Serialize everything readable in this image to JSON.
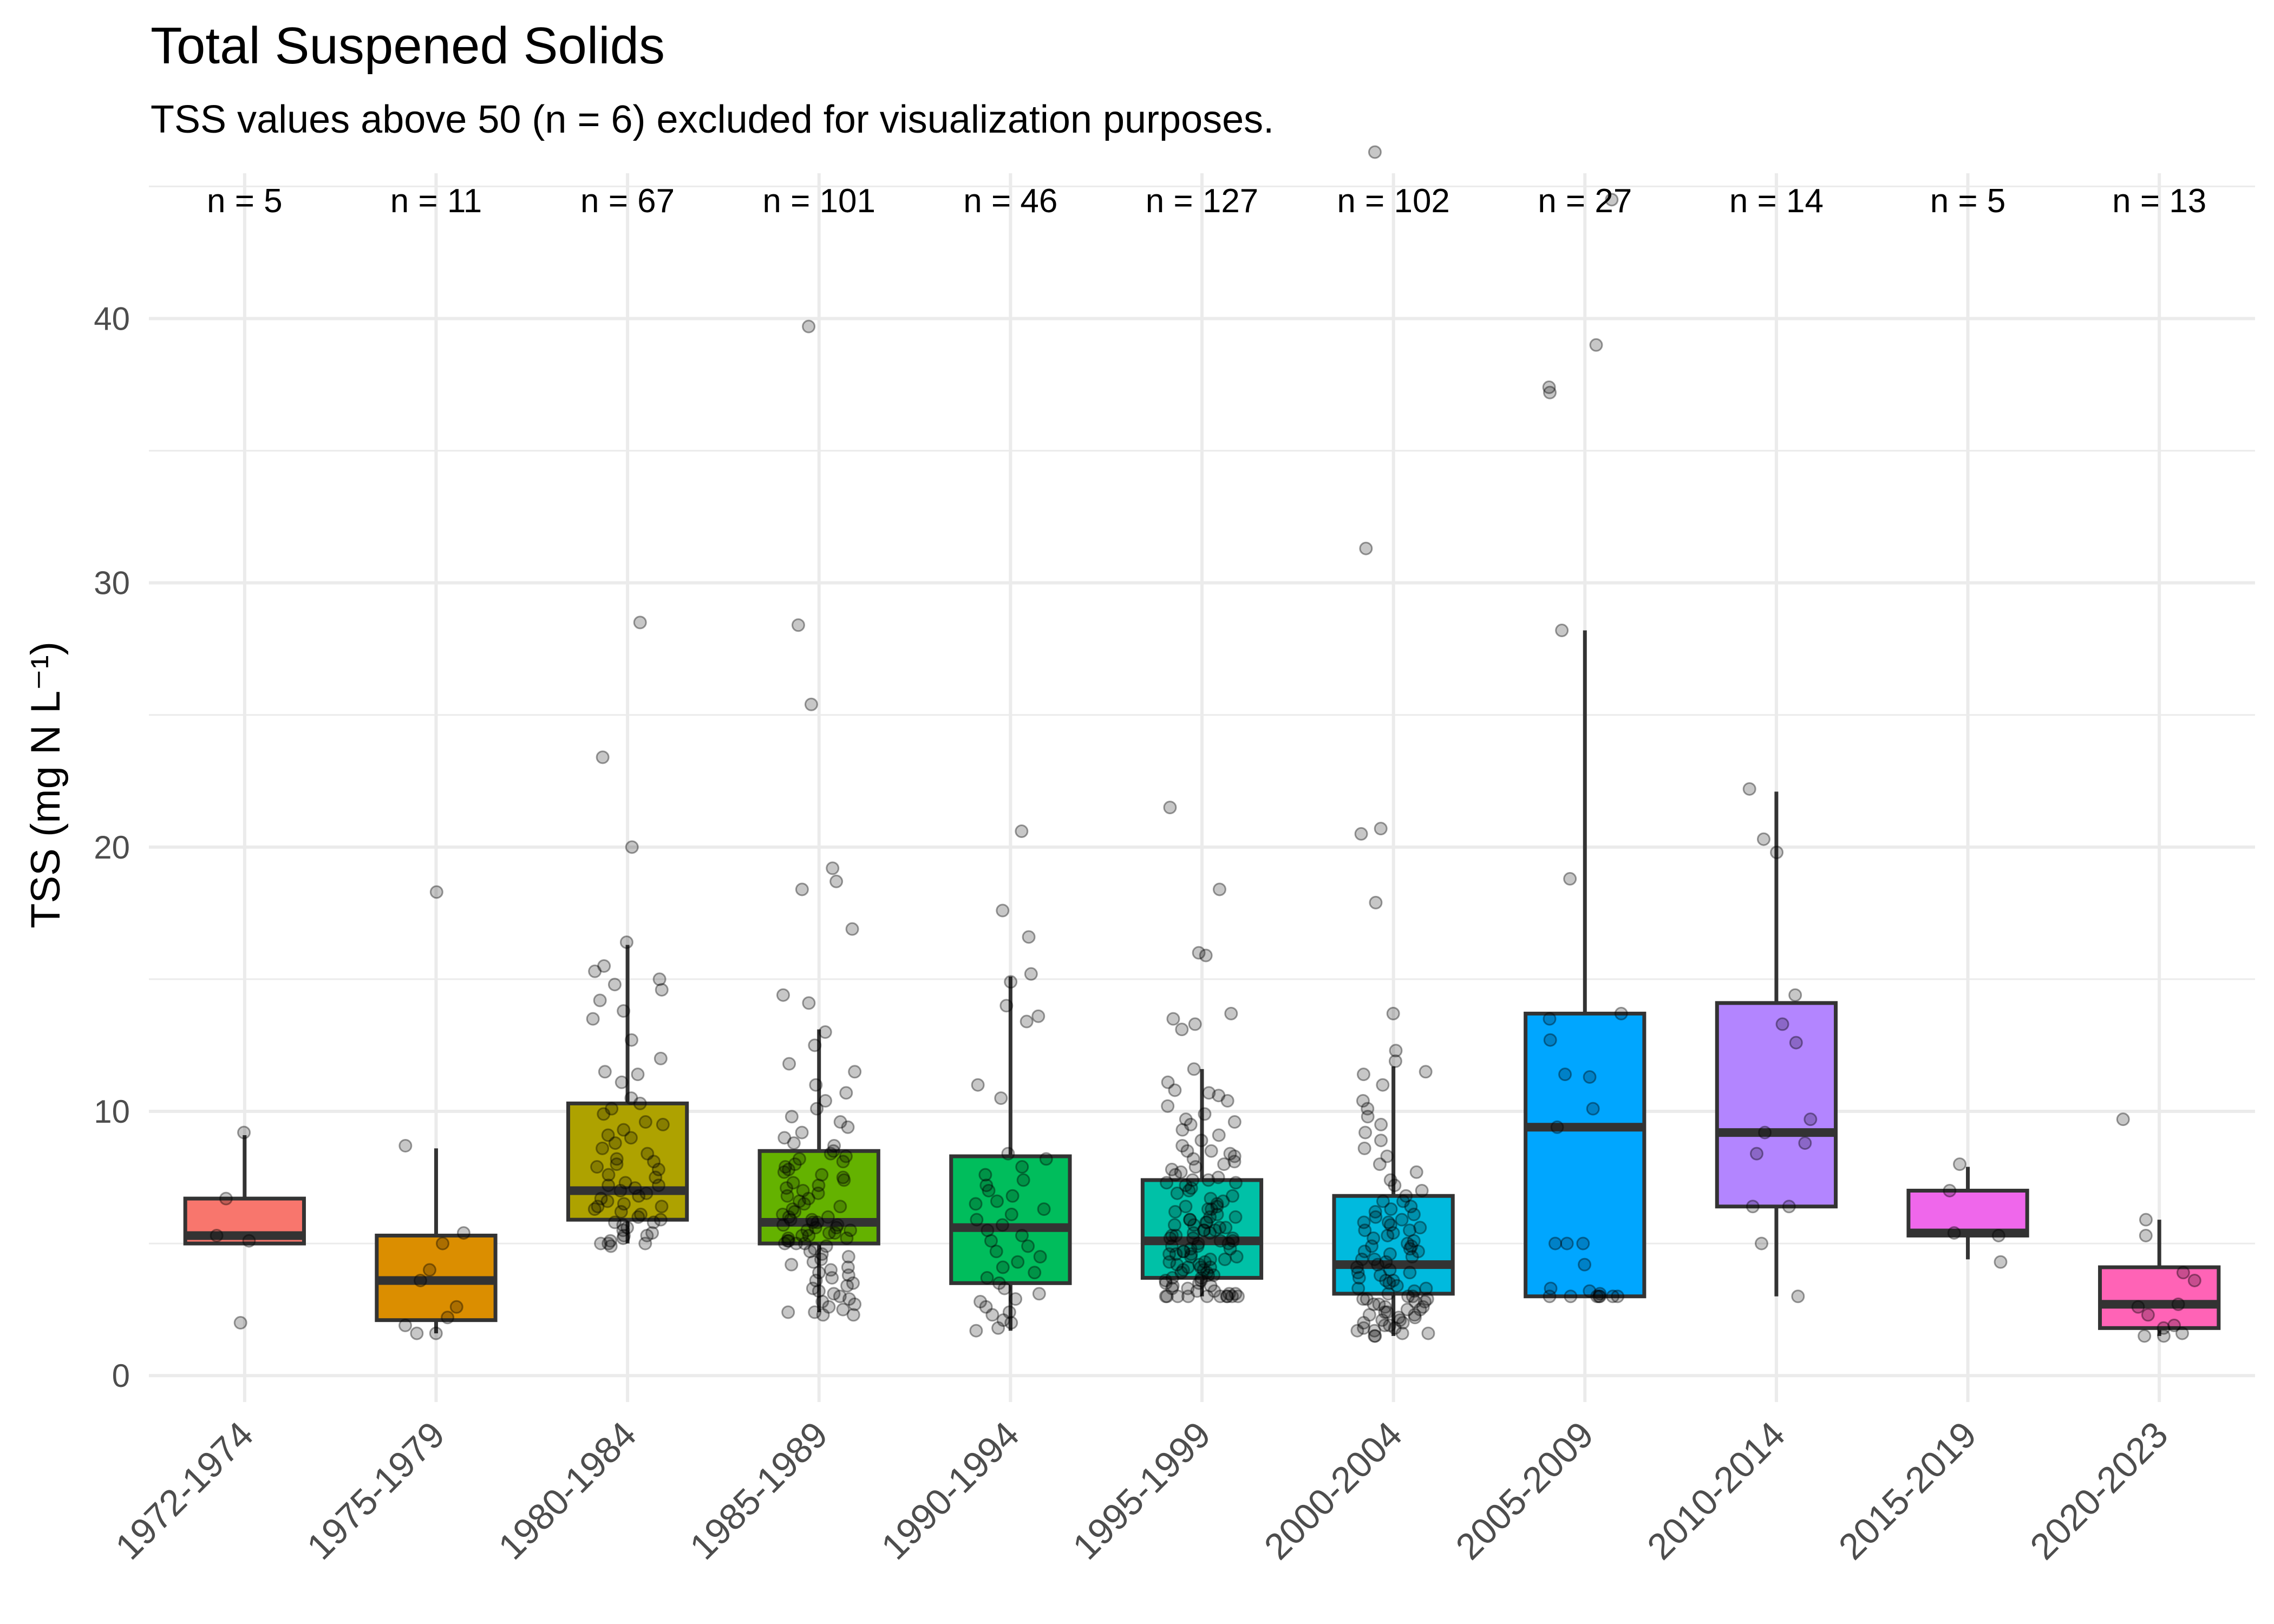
{
  "chart_data": {
    "type": "box",
    "title": "Total Suspened Solids",
    "subtitle": "TSS values above 50 (n = 6) excluded for visualization purposes.",
    "xlabel": "",
    "ylabel": "TSS (mg N L⁻¹)",
    "ylim": [
      -1,
      45.5
    ],
    "yticks": [
      0,
      10,
      20,
      30,
      40
    ],
    "grid": true,
    "legend": "none",
    "categories": [
      "1972-1974",
      "1975-1979",
      "1980-1984",
      "1985-1989",
      "1990-1994",
      "1995-1999",
      "2000-2004",
      "2005-2009",
      "2010-2014",
      "2015-2019",
      "2020-2023"
    ],
    "n_labels": [
      "n = 5",
      "n = 11",
      "n = 67",
      "n = 101",
      "n = 46",
      "n = 127",
      "n = 102",
      "n = 27",
      "n = 14",
      "n = 5",
      "n = 13"
    ],
    "colors": [
      "#F8766D",
      "#DB8E00",
      "#AEA200",
      "#64B200",
      "#00BD5C",
      "#00C1A7",
      "#00BADE",
      "#00A6FF",
      "#B385FF",
      "#EF67EB",
      "#FF63B6"
    ],
    "boxes": [
      {
        "q1": 5.0,
        "median": 5.3,
        "q3": 6.7,
        "whisker_low": 5.0,
        "whisker_high": 9.1
      },
      {
        "q1": 2.1,
        "median": 3.6,
        "q3": 5.3,
        "whisker_low": 1.6,
        "whisker_high": 8.6
      },
      {
        "q1": 5.9,
        "median": 7.0,
        "q3": 10.3,
        "whisker_low": 5.0,
        "whisker_high": 16.3
      },
      {
        "q1": 5.0,
        "median": 5.8,
        "q3": 8.5,
        "whisker_low": 2.4,
        "whisker_high": 13.1
      },
      {
        "q1": 3.5,
        "median": 5.6,
        "q3": 8.3,
        "whisker_low": 1.7,
        "whisker_high": 15.1
      },
      {
        "q1": 3.7,
        "median": 5.1,
        "q3": 7.4,
        "whisker_low": 3.0,
        "whisker_high": 11.6
      },
      {
        "q1": 3.1,
        "median": 4.2,
        "q3": 6.8,
        "whisker_low": 1.5,
        "whisker_high": 11.7
      },
      {
        "q1": 3.0,
        "median": 9.4,
        "q3": 13.7,
        "whisker_low": 3.0,
        "whisker_high": 28.2
      },
      {
        "q1": 6.4,
        "median": 9.2,
        "q3": 14.1,
        "whisker_low": 3.0,
        "whisker_high": 22.1
      },
      {
        "q1": 5.3,
        "median": 5.4,
        "q3": 7.0,
        "whisker_low": 4.4,
        "whisker_high": 7.9
      },
      {
        "q1": 1.8,
        "median": 2.7,
        "q3": 4.1,
        "whisker_low": 1.5,
        "whisker_high": 5.9
      }
    ],
    "points": [
      [
        9.2,
        5.1,
        5.3,
        6.7,
        2.0
      ],
      [
        18.3,
        8.7,
        5.4,
        5.0,
        4.0,
        3.6,
        2.6,
        2.2,
        1.9,
        1.6,
        1.6
      ],
      [
        28.5,
        23.4,
        20.0,
        16.4,
        15.5,
        15.3,
        15.0,
        14.6,
        14.2,
        13.8,
        12.0,
        11.5,
        11.1,
        10.5,
        10.3,
        10.1,
        9.9,
        9.5,
        9.3,
        9.1,
        9.0,
        8.8,
        8.6,
        8.4,
        8.2,
        8.0,
        7.9,
        7.8,
        7.6,
        7.5,
        7.3,
        7.2,
        7.1,
        7.0,
        6.9,
        6.8,
        6.7,
        6.6,
        6.5,
        6.4,
        6.3,
        6.2,
        6.1,
        6.0,
        5.9,
        5.8,
        5.7,
        5.6,
        5.5,
        5.4,
        5.3,
        5.2,
        5.1,
        5.0,
        5.0,
        5.0,
        4.9,
        5.3,
        5.8,
        6.4,
        7.2,
        8.1,
        9.6,
        11.4,
        12.7,
        13.5,
        14.8
      ],
      [
        39.7,
        28.4,
        25.4,
        19.2,
        18.7,
        18.4,
        16.9,
        14.4,
        14.1,
        13.0,
        12.5,
        11.8,
        11.5,
        11.0,
        10.7,
        10.4,
        10.1,
        9.8,
        9.6,
        9.4,
        9.2,
        9.0,
        8.8,
        8.7,
        8.5,
        8.4,
        8.3,
        8.2,
        8.1,
        8.0,
        7.9,
        7.8,
        7.7,
        7.6,
        7.5,
        7.4,
        7.3,
        7.2,
        7.1,
        7.0,
        6.9,
        6.8,
        6.7,
        6.6,
        6.5,
        6.4,
        6.3,
        6.2,
        6.1,
        6.0,
        6.0,
        5.9,
        5.9,
        5.8,
        5.8,
        5.7,
        5.7,
        5.6,
        5.6,
        5.5,
        5.5,
        5.4,
        5.4,
        5.3,
        5.3,
        5.2,
        5.2,
        5.1,
        5.1,
        5.0,
        5.0,
        5.0,
        4.9,
        4.8,
        4.7,
        4.6,
        4.5,
        4.4,
        4.3,
        4.2,
        4.1,
        4.0,
        3.9,
        3.8,
        3.7,
        3.6,
        3.5,
        3.4,
        3.3,
        3.2,
        3.1,
        3.0,
        2.9,
        2.8,
        2.7,
        2.6,
        2.5,
        2.4,
        2.4,
        2.3,
        2.3
      ],
      [
        20.6,
        17.6,
        16.6,
        15.2,
        14.9,
        14.0,
        13.6,
        13.4,
        11.0,
        10.5,
        8.4,
        8.2,
        7.9,
        7.6,
        7.4,
        7.2,
        7.0,
        6.8,
        6.6,
        6.5,
        6.3,
        6.1,
        5.9,
        5.7,
        5.5,
        5.3,
        5.1,
        4.9,
        4.7,
        4.5,
        4.3,
        4.1,
        3.9,
        3.7,
        3.5,
        3.3,
        3.1,
        2.9,
        2.8,
        2.6,
        2.4,
        2.3,
        2.1,
        2.0,
        1.8,
        1.7
      ],
      [
        21.5,
        18.4,
        16.0,
        15.9,
        13.7,
        13.5,
        13.3,
        13.1,
        11.6,
        11.1,
        10.8,
        10.6,
        10.4,
        10.2,
        9.9,
        9.7,
        9.5,
        9.3,
        9.1,
        8.9,
        8.7,
        8.5,
        8.4,
        8.3,
        8.2,
        8.1,
        8.0,
        7.9,
        7.8,
        7.7,
        7.6,
        7.5,
        7.4,
        7.3,
        7.2,
        7.1,
        7.0,
        6.9,
        6.8,
        6.7,
        6.6,
        6.5,
        6.4,
        6.3,
        6.2,
        6.1,
        6.0,
        6.0,
        5.9,
        5.9,
        5.8,
        5.8,
        5.7,
        5.7,
        5.6,
        5.6,
        5.5,
        5.5,
        5.4,
        5.4,
        5.3,
        5.3,
        5.2,
        5.2,
        5.1,
        5.1,
        5.0,
        5.0,
        4.9,
        4.9,
        4.8,
        4.8,
        4.7,
        4.7,
        4.6,
        4.6,
        4.5,
        4.5,
        4.4,
        4.4,
        4.3,
        4.3,
        4.2,
        4.2,
        4.1,
        4.1,
        4.0,
        4.0,
        3.9,
        3.9,
        3.8,
        3.8,
        3.7,
        3.7,
        3.6,
        3.6,
        3.5,
        3.5,
        3.4,
        3.4,
        3.3,
        3.3,
        3.2,
        3.2,
        3.1,
        3.1,
        3.0,
        3.0,
        3.0,
        3.0,
        3.0,
        3.0,
        3.0,
        3.0,
        3.0,
        3.0,
        4.1,
        5.2,
        6.3,
        7.4,
        8.5,
        9.6,
        10.7,
        4.6,
        5.5,
        6.4,
        7.3
      ],
      [
        46.3,
        31.3,
        20.7,
        20.5,
        17.9,
        13.7,
        12.3,
        11.9,
        11.5,
        11.4,
        11.0,
        10.4,
        10.1,
        9.8,
        9.5,
        9.2,
        8.9,
        8.6,
        8.3,
        8.0,
        7.7,
        7.4,
        7.2,
        7.0,
        6.8,
        6.6,
        6.4,
        6.3,
        6.2,
        6.1,
        6.0,
        5.9,
        5.8,
        5.7,
        5.6,
        5.5,
        5.4,
        5.3,
        5.2,
        5.1,
        5.0,
        4.9,
        4.8,
        4.7,
        4.6,
        4.5,
        4.4,
        4.3,
        4.2,
        4.1,
        4.0,
        3.9,
        3.8,
        3.7,
        3.6,
        3.5,
        3.4,
        3.3,
        3.2,
        3.1,
        3.0,
        3.0,
        2.9,
        2.9,
        2.8,
        2.8,
        2.7,
        2.7,
        2.6,
        2.6,
        2.5,
        2.5,
        2.4,
        2.4,
        2.3,
        2.3,
        2.2,
        2.2,
        2.1,
        2.1,
        2.0,
        2.0,
        1.9,
        1.9,
        1.8,
        1.8,
        1.7,
        1.7,
        1.6,
        1.6,
        1.5,
        1.5,
        3.3,
        4.4,
        5.5,
        6.6,
        3.6,
        4.7,
        5.8,
        2.9,
        3.9,
        4.9
      ],
      [
        44.5,
        39.0,
        37.4,
        37.2,
        28.2,
        18.8,
        13.7,
        13.5,
        12.7,
        11.4,
        11.3,
        10.1,
        9.4,
        5.0,
        5.0,
        5.0,
        4.2,
        3.3,
        3.2,
        3.1,
        3.0,
        3.0,
        3.0,
        3.0,
        3.0,
        3.0,
        3.0
      ],
      [
        22.2,
        20.3,
        19.8,
        14.4,
        13.3,
        12.6,
        9.7,
        8.8,
        8.4,
        6.4,
        6.4,
        5.0,
        3.0,
        9.2
      ],
      [
        8.0,
        7.0,
        5.4,
        5.3,
        4.3
      ],
      [
        9.7,
        5.9,
        5.3,
        3.9,
        3.6,
        2.7,
        2.6,
        2.3,
        1.9,
        1.8,
        1.6,
        1.5,
        1.5
      ]
    ]
  }
}
